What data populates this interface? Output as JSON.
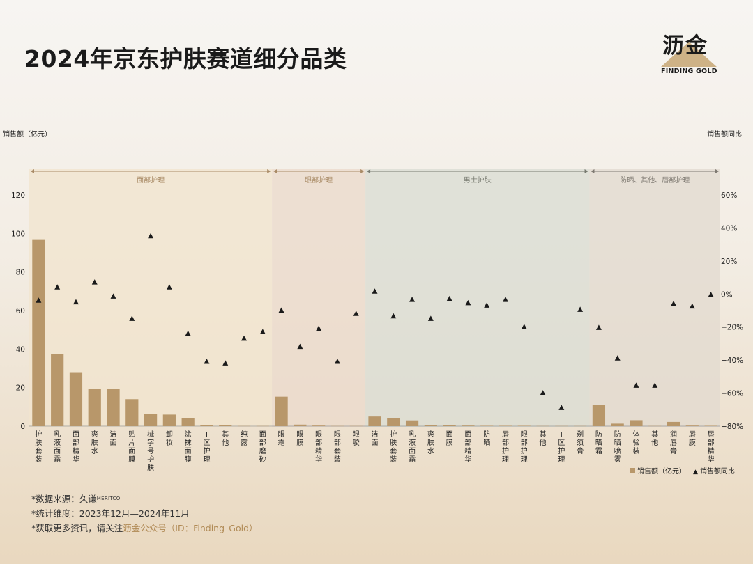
{
  "title": "2024年京东护肤赛道细分品类",
  "logo": {
    "cn": "沥金",
    "en": "FINDING GOLD"
  },
  "axis": {
    "left_title": "销售额（亿元）",
    "right_title": "销售额同比"
  },
  "legend": {
    "bar": "销售额（亿元）",
    "marker": "销售额同比"
  },
  "footer": {
    "source_prefix": "*数据来源：久谦",
    "source_sub": "MERITCO",
    "period": "*统计维度：2023年12月—2024年11月",
    "more_prefix": "*获取更多资讯，请关注",
    "more_highlight": "沥金公众号（ID：Finding_Gold）"
  },
  "colors": {
    "bar": "#b8976a",
    "marker": "#1a1a1a"
  },
  "chart_data": {
    "type": "bar",
    "ylabel": "销售额（亿元）",
    "y2label": "销售额同比",
    "ylim": [
      0,
      120
    ],
    "y_ticks": [
      0,
      20,
      40,
      60,
      80,
      100,
      120
    ],
    "y2lim": [
      -80,
      60
    ],
    "y2_ticks": [
      "−80%",
      "−60%",
      "−40%",
      "−20%",
      "0%",
      "20%",
      "40%",
      "60%"
    ],
    "groups": [
      {
        "name": "面部护理",
        "start": 0,
        "end": 12,
        "color": "#f1e4ce",
        "text": "#a98b66"
      },
      {
        "name": "眼部护理",
        "start": 13,
        "end": 17,
        "color": "#ebd9cb",
        "text": "#a98b66"
      },
      {
        "name": "男士护肤",
        "start": 18,
        "end": 29,
        "color": "#d9dcd3",
        "text": "#777a70"
      },
      {
        "name": "防晒、其他、唇部护理",
        "start": 30,
        "end": 36,
        "color": "#e1d9cf",
        "text": "#7f7a72"
      }
    ],
    "categories": [
      "护肤套装",
      "乳液面霜",
      "面部精华",
      "爽肤水",
      "洁面",
      "贴片面膜",
      "械字号护肤",
      "卸妆",
      "涂抹面膜",
      "T区护理",
      "其他",
      "纯露",
      "面部磨砂",
      "眼霜",
      "眼膜",
      "眼部精华",
      "眼部套装",
      "眼胶",
      "洁面",
      "护肤套装",
      "乳液面霜",
      "爽肤水",
      "面膜",
      "面部精华",
      "防晒",
      "唇部护理",
      "眼部护理",
      "其他",
      "T区护理",
      "剃须膏",
      "防晒霜",
      "防晒喷雾",
      "体验装",
      "其他",
      "润唇膏",
      "唇膜",
      "唇部精华"
    ],
    "series": [
      {
        "name": "销售额（亿元）",
        "type": "bar",
        "axis": "left",
        "values": [
          97,
          37.5,
          28,
          19.5,
          19.5,
          14,
          6.5,
          6,
          4.2,
          0.6,
          0.5,
          0.1,
          0.1,
          15.3,
          0.8,
          0.3,
          0.1,
          0.1,
          5,
          4,
          3,
          0.7,
          0.6,
          0.3,
          0.2,
          0.2,
          0.2,
          0.1,
          0.1,
          0.1,
          11.2,
          1.3,
          3.1,
          0.1,
          2.2,
          0.3,
          0.2
        ]
      },
      {
        "name": "销售额同比",
        "type": "scatter",
        "axis": "right",
        "unit": "%",
        "values": [
          -4,
          4,
          -5,
          7,
          -1.5,
          -15,
          35,
          4,
          -24,
          -41,
          -42,
          -27,
          -23,
          -10,
          -32,
          -21,
          -41,
          -12,
          1.5,
          -13.5,
          -3.5,
          -15,
          -3,
          -5.5,
          -7,
          -3.5,
          -20,
          -60,
          -69,
          -9.5,
          -20.5,
          -39,
          -55.5,
          -55.5,
          -6,
          -7.5,
          -0.5
        ]
      }
    ]
  }
}
